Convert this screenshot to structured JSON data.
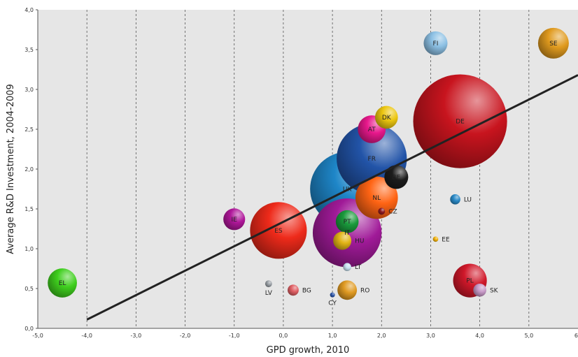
{
  "chart_data": {
    "type": "scatter",
    "title": "",
    "xlabel": "GPD growth, 2010",
    "ylabel": "Average R&D Investment, 2004-2009",
    "xlim": [
      -5,
      6
    ],
    "ylim": [
      0,
      4
    ],
    "x_ticks": [
      "-5,0",
      "-4,0",
      "-3,0",
      "-2,0",
      "-1,0",
      "0,0",
      "1,0",
      "2,0",
      "3,0",
      "4,0",
      "5,0",
      "6"
    ],
    "y_ticks": [
      "0,0",
      "0,5",
      "1,0",
      "1,5",
      "2,0",
      "2,5",
      "3,0",
      "3,5",
      "4,0"
    ],
    "grid": {
      "vertical": "dashed",
      "horizontal": "none"
    },
    "trendline": {
      "x": [
        -4.0,
        6.0
      ],
      "y": [
        0.11,
        3.18
      ]
    },
    "bubbles": [
      {
        "label": "EL",
        "x": -4.5,
        "y": 0.57,
        "size": 0.9,
        "color": "#3fcf1e"
      },
      {
        "label": "IE",
        "x": -1.0,
        "y": 1.37,
        "size": 0.5,
        "color": "#b0179a"
      },
      {
        "label": "ES",
        "x": -0.1,
        "y": 1.23,
        "size": 3.4,
        "color": "#ee2a1a"
      },
      {
        "label": "LV",
        "x": -0.3,
        "y": 0.56,
        "size": 0.05,
        "color": "#9aa0a6"
      },
      {
        "label": "BG",
        "x": 0.2,
        "y": 0.48,
        "size": 0.13,
        "color": "#e05f64"
      },
      {
        "label": "CY",
        "x": 1.0,
        "y": 0.42,
        "size": 0.02,
        "color": "#2a54a8"
      },
      {
        "label": "RO",
        "x": 1.3,
        "y": 0.48,
        "size": 0.4,
        "color": "#e09a22"
      },
      {
        "label": "IT",
        "x": 1.3,
        "y": 1.2,
        "size": 5.0,
        "color": "#a01a98"
      },
      {
        "label": "PT",
        "x": 1.3,
        "y": 1.34,
        "size": 0.55,
        "color": "#1a9a3c"
      },
      {
        "label": "HU",
        "x": 1.2,
        "y": 1.1,
        "size": 0.35,
        "color": "#e2b416"
      },
      {
        "label": "LT",
        "x": 1.3,
        "y": 0.77,
        "size": 0.07,
        "color": "#c9e2f2"
      },
      {
        "label": "FR",
        "x": 1.8,
        "y": 2.13,
        "size": 5.2,
        "color": "#2254a8"
      },
      {
        "label": "NL",
        "x": 1.9,
        "y": 1.64,
        "size": 1.9,
        "color": "#ff6414"
      },
      {
        "label": "BE",
        "x": 2.3,
        "y": 1.9,
        "size": 0.6,
        "color": "#1c1c1c"
      },
      {
        "label": "CZ",
        "x": 2.0,
        "y": 1.47,
        "size": 0.05,
        "color": "#8c1a20"
      },
      {
        "label": "DK",
        "x": 2.1,
        "y": 2.65,
        "size": 0.55,
        "color": "#ecc610"
      },
      {
        "label": "AT",
        "x": 1.8,
        "y": 2.5,
        "size": 0.82,
        "color": "#e8188c"
      },
      {
        "label": "UK",
        "x": 1.3,
        "y": 1.75,
        "size": 5.8,
        "color": "#1e86c8"
      },
      {
        "label": "FI",
        "x": 3.1,
        "y": 3.58,
        "size": 0.6,
        "color": "#8cc0e4"
      },
      {
        "label": "SE",
        "x": 5.5,
        "y": 3.58,
        "size": 1.0,
        "color": "#e09a1e"
      },
      {
        "label": "DE",
        "x": 3.6,
        "y": 2.6,
        "size": 9.3,
        "color": "#c8141e"
      },
      {
        "label": "LU",
        "x": 3.5,
        "y": 1.62,
        "size": 0.11,
        "color": "#2a8ac8"
      },
      {
        "label": "EE",
        "x": 3.1,
        "y": 1.12,
        "size": 0.03,
        "color": "#f2b20c"
      },
      {
        "label": "PL",
        "x": 3.8,
        "y": 0.6,
        "size": 1.2,
        "color": "#d0182a"
      },
      {
        "label": "SK",
        "x": 4.0,
        "y": 0.48,
        "size": 0.18,
        "color": "#c89ac8"
      }
    ]
  }
}
